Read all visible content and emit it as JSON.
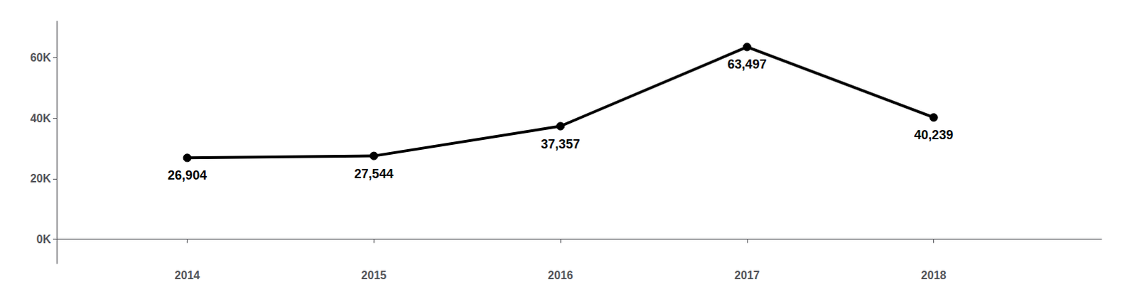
{
  "chart_data": {
    "type": "line",
    "x": [
      2014,
      2015,
      2016,
      2017,
      2018
    ],
    "values": [
      26904,
      27544,
      37357,
      63497,
      40239
    ],
    "value_labels": [
      "26,904",
      "27,544",
      "37,357",
      "63,497",
      "40,239"
    ],
    "data_labels": true,
    "color": "#000000",
    "marker": "circle",
    "xlim": [
      2013.3,
      2018.9
    ],
    "xticks": [
      2014,
      2015,
      2016,
      2017,
      2018
    ],
    "ylim": [
      -8000,
      72000
    ],
    "yticks": [
      {
        "value": 0,
        "label": "0K"
      },
      {
        "value": 20000,
        "label": "20K"
      },
      {
        "value": 40000,
        "label": "40K"
      },
      {
        "value": 60000,
        "label": "60K"
      }
    ],
    "grid": false
  }
}
